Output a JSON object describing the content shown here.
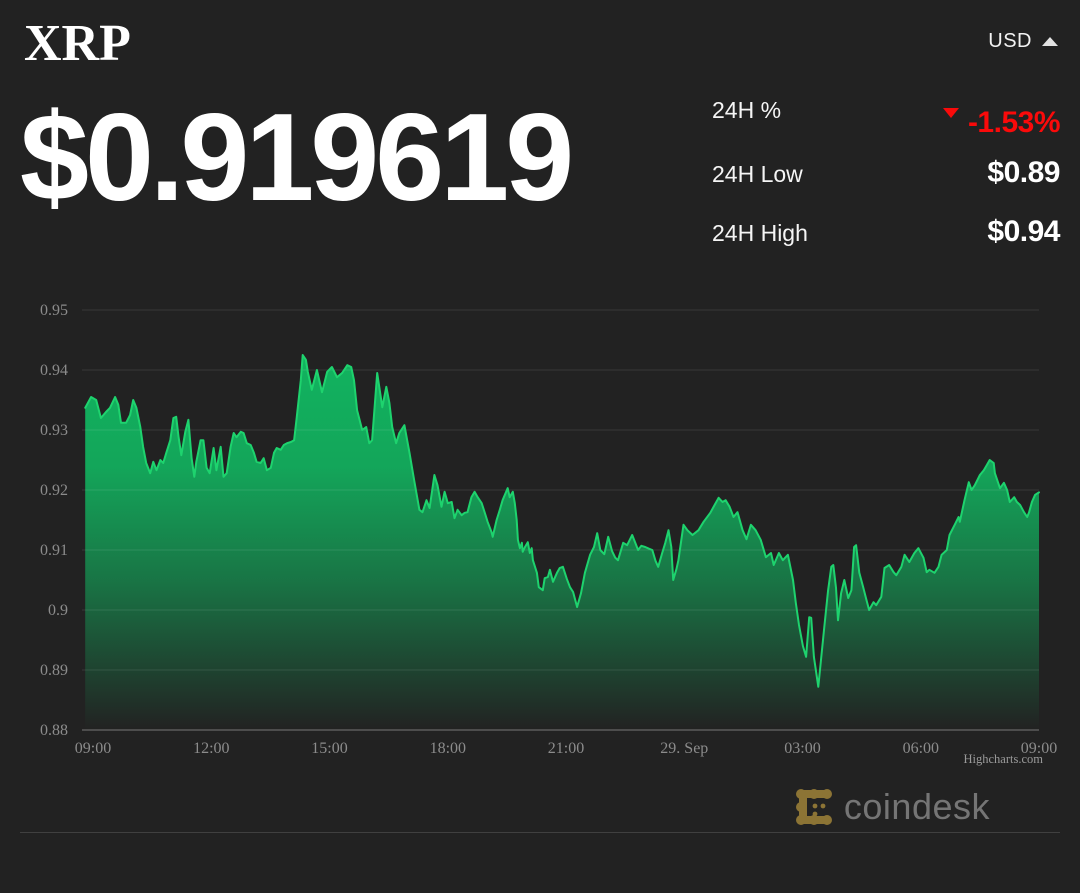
{
  "header": {
    "title": "XRP",
    "currency": "USD"
  },
  "price": {
    "display": "$0.919619"
  },
  "stats": [
    {
      "label": "24H %",
      "value": "-1.53%",
      "direction": "down",
      "color": "#fa0a0a"
    },
    {
      "label": "24H Low",
      "value": "$0.89"
    },
    {
      "label": "24H High",
      "value": "$0.94"
    }
  ],
  "footer": {
    "brand": "coindesk",
    "logo_color": "#8c7435"
  },
  "colors": {
    "background": "#222222",
    "accent_green_line": "#1ed36e",
    "accent_green_fill": "#11b962",
    "negative_red": "#fa0a0a",
    "axis_text": "#8c8c8c"
  },
  "chart_data": {
    "type": "area",
    "title": "",
    "xlabel": "",
    "ylabel": "",
    "x_unit": "hours (09:00 to 09:00 next day, 29. Sep = midnight)",
    "xlim": [
      8.72,
      33.0
    ],
    "ylim": [
      0.88,
      0.95
    ],
    "grid": "horizontal",
    "legend": "none",
    "credit": "Highcharts.com",
    "colors": {
      "line": "#1ed36e",
      "area_base": "#11b962",
      "grid": "rgba(255,255,255,0.10)",
      "axis_line": "#787878"
    },
    "x_ticks": [
      {
        "v": 9,
        "label": "09:00"
      },
      {
        "v": 12,
        "label": "12:00"
      },
      {
        "v": 15,
        "label": "15:00"
      },
      {
        "v": 18,
        "label": "18:00"
      },
      {
        "v": 21,
        "label": "21:00"
      },
      {
        "v": 24,
        "label": "29. Sep"
      },
      {
        "v": 27,
        "label": "03:00"
      },
      {
        "v": 30,
        "label": "06:00"
      },
      {
        "v": 33,
        "label": "09:00"
      }
    ],
    "y_ticks": [
      {
        "v": 0.95,
        "label": "0.95"
      },
      {
        "v": 0.94,
        "label": "0.94"
      },
      {
        "v": 0.93,
        "label": "0.93"
      },
      {
        "v": 0.92,
        "label": "0.92"
      },
      {
        "v": 0.91,
        "label": "0.91"
      },
      {
        "v": 0.9,
        "label": "0.9"
      },
      {
        "v": 0.89,
        "label": "0.89"
      },
      {
        "v": 0.88,
        "label": "0.88"
      }
    ],
    "points": [
      [
        8.8,
        0.9337
      ],
      [
        8.95,
        0.9355
      ],
      [
        9.08,
        0.935
      ],
      [
        9.2,
        0.932
      ],
      [
        9.33,
        0.933
      ],
      [
        9.43,
        0.9337
      ],
      [
        9.56,
        0.9355
      ],
      [
        9.64,
        0.9342
      ],
      [
        9.71,
        0.9312
      ],
      [
        9.84,
        0.9312
      ],
      [
        9.94,
        0.9325
      ],
      [
        10.02,
        0.935
      ],
      [
        10.1,
        0.9337
      ],
      [
        10.2,
        0.9305
      ],
      [
        10.27,
        0.9272
      ],
      [
        10.35,
        0.9245
      ],
      [
        10.45,
        0.9228
      ],
      [
        10.53,
        0.9247
      ],
      [
        10.61,
        0.9233
      ],
      [
        10.71,
        0.925
      ],
      [
        10.78,
        0.9245
      ],
      [
        10.86,
        0.9262
      ],
      [
        10.96,
        0.9283
      ],
      [
        11.04,
        0.932
      ],
      [
        11.11,
        0.9322
      ],
      [
        11.17,
        0.9288
      ],
      [
        11.24,
        0.9258
      ],
      [
        11.34,
        0.9297
      ],
      [
        11.42,
        0.9317
      ],
      [
        11.5,
        0.9253
      ],
      [
        11.57,
        0.9222
      ],
      [
        11.62,
        0.9247
      ],
      [
        11.73,
        0.9283
      ],
      [
        11.8,
        0.9283
      ],
      [
        11.88,
        0.9237
      ],
      [
        11.96,
        0.9228
      ],
      [
        12.06,
        0.927
      ],
      [
        12.13,
        0.9233
      ],
      [
        12.24,
        0.9272
      ],
      [
        12.31,
        0.9222
      ],
      [
        12.39,
        0.9228
      ],
      [
        12.49,
        0.9272
      ],
      [
        12.57,
        0.9295
      ],
      [
        12.64,
        0.9288
      ],
      [
        12.75,
        0.9297
      ],
      [
        12.82,
        0.9295
      ],
      [
        12.9,
        0.9278
      ],
      [
        13.0,
        0.9275
      ],
      [
        13.08,
        0.9262
      ],
      [
        13.15,
        0.9247
      ],
      [
        13.25,
        0.9245
      ],
      [
        13.33,
        0.9253
      ],
      [
        13.41,
        0.9233
      ],
      [
        13.51,
        0.9237
      ],
      [
        13.59,
        0.9262
      ],
      [
        13.66,
        0.927
      ],
      [
        13.76,
        0.9267
      ],
      [
        13.84,
        0.9275
      ],
      [
        13.92,
        0.9278
      ],
      [
        14.02,
        0.928
      ],
      [
        14.1,
        0.9283
      ],
      [
        14.17,
        0.9322
      ],
      [
        14.27,
        0.9383
      ],
      [
        14.32,
        0.9425
      ],
      [
        14.4,
        0.9417
      ],
      [
        14.45,
        0.9397
      ],
      [
        14.55,
        0.9367
      ],
      [
        14.68,
        0.94
      ],
      [
        14.81,
        0.9363
      ],
      [
        14.94,
        0.9397
      ],
      [
        15.06,
        0.9405
      ],
      [
        15.19,
        0.9388
      ],
      [
        15.32,
        0.9395
      ],
      [
        15.45,
        0.9408
      ],
      [
        15.55,
        0.9405
      ],
      [
        15.62,
        0.9383
      ],
      [
        15.7,
        0.9333
      ],
      [
        15.83,
        0.93
      ],
      [
        15.93,
        0.9305
      ],
      [
        16.01,
        0.9278
      ],
      [
        16.08,
        0.9283
      ],
      [
        16.21,
        0.9395
      ],
      [
        16.34,
        0.9338
      ],
      [
        16.44,
        0.9372
      ],
      [
        16.52,
        0.9345
      ],
      [
        16.59,
        0.9305
      ],
      [
        16.69,
        0.9278
      ],
      [
        16.77,
        0.9295
      ],
      [
        16.9,
        0.9308
      ],
      [
        17.03,
        0.9262
      ],
      [
        17.15,
        0.9215
      ],
      [
        17.28,
        0.9167
      ],
      [
        17.36,
        0.9163
      ],
      [
        17.46,
        0.9183
      ],
      [
        17.54,
        0.917
      ],
      [
        17.66,
        0.9225
      ],
      [
        17.74,
        0.9208
      ],
      [
        17.84,
        0.9172
      ],
      [
        17.92,
        0.9197
      ],
      [
        18.0,
        0.9178
      ],
      [
        18.1,
        0.918
      ],
      [
        18.17,
        0.9153
      ],
      [
        18.25,
        0.9167
      ],
      [
        18.35,
        0.9158
      ],
      [
        18.43,
        0.9162
      ],
      [
        18.5,
        0.9163
      ],
      [
        18.6,
        0.9188
      ],
      [
        18.68,
        0.9197
      ],
      [
        18.76,
        0.9188
      ],
      [
        18.86,
        0.9178
      ],
      [
        18.94,
        0.9162
      ],
      [
        19.01,
        0.9147
      ],
      [
        19.11,
        0.913
      ],
      [
        19.14,
        0.9122
      ],
      [
        19.24,
        0.915
      ],
      [
        19.32,
        0.9167
      ],
      [
        19.39,
        0.9183
      ],
      [
        19.5,
        0.92
      ],
      [
        19.52,
        0.9203
      ],
      [
        19.57,
        0.9188
      ],
      [
        19.65,
        0.9197
      ],
      [
        19.7,
        0.9178
      ],
      [
        19.75,
        0.915
      ],
      [
        19.78,
        0.9117
      ],
      [
        19.83,
        0.9103
      ],
      [
        19.88,
        0.9112
      ],
      [
        19.9,
        0.9097
      ],
      [
        19.96,
        0.9105
      ],
      [
        20.03,
        0.9113
      ],
      [
        20.08,
        0.9095
      ],
      [
        20.13,
        0.9103
      ],
      [
        20.16,
        0.9083
      ],
      [
        20.26,
        0.9062
      ],
      [
        20.31,
        0.9038
      ],
      [
        20.41,
        0.9033
      ],
      [
        20.46,
        0.9053
      ],
      [
        20.54,
        0.9055
      ],
      [
        20.59,
        0.9067
      ],
      [
        20.67,
        0.9047
      ],
      [
        20.77,
        0.9062
      ],
      [
        20.84,
        0.907
      ],
      [
        20.92,
        0.9072
      ],
      [
        21.02,
        0.9052
      ],
      [
        21.1,
        0.9038
      ],
      [
        21.18,
        0.903
      ],
      [
        21.28,
        0.9005
      ],
      [
        21.38,
        0.9028
      ],
      [
        21.48,
        0.9062
      ],
      [
        21.61,
        0.9092
      ],
      [
        21.71,
        0.9105
      ],
      [
        21.79,
        0.9128
      ],
      [
        21.87,
        0.91
      ],
      [
        21.97,
        0.9093
      ],
      [
        22.07,
        0.9122
      ],
      [
        22.17,
        0.9098
      ],
      [
        22.25,
        0.9087
      ],
      [
        22.32,
        0.9083
      ],
      [
        22.45,
        0.9112
      ],
      [
        22.55,
        0.9108
      ],
      [
        22.68,
        0.9125
      ],
      [
        22.83,
        0.91
      ],
      [
        22.91,
        0.9107
      ],
      [
        23.01,
        0.9105
      ],
      [
        23.11,
        0.9102
      ],
      [
        23.19,
        0.91
      ],
      [
        23.27,
        0.9082
      ],
      [
        23.34,
        0.9072
      ],
      [
        23.44,
        0.9095
      ],
      [
        23.52,
        0.9112
      ],
      [
        23.6,
        0.9133
      ],
      [
        23.67,
        0.9105
      ],
      [
        23.72,
        0.905
      ],
      [
        23.8,
        0.9068
      ],
      [
        23.85,
        0.9083
      ],
      [
        23.98,
        0.9142
      ],
      [
        24.08,
        0.9133
      ],
      [
        24.21,
        0.9125
      ],
      [
        24.36,
        0.9133
      ],
      [
        24.49,
        0.9147
      ],
      [
        24.66,
        0.9162
      ],
      [
        24.77,
        0.9175
      ],
      [
        24.87,
        0.9187
      ],
      [
        24.97,
        0.918
      ],
      [
        25.05,
        0.9183
      ],
      [
        25.15,
        0.9172
      ],
      [
        25.25,
        0.9155
      ],
      [
        25.35,
        0.9163
      ],
      [
        25.48,
        0.9133
      ],
      [
        25.58,
        0.9118
      ],
      [
        25.69,
        0.9142
      ],
      [
        25.81,
        0.9133
      ],
      [
        25.94,
        0.9117
      ],
      [
        26.07,
        0.9088
      ],
      [
        26.2,
        0.9095
      ],
      [
        26.27,
        0.9075
      ],
      [
        26.4,
        0.9095
      ],
      [
        26.5,
        0.9083
      ],
      [
        26.63,
        0.9092
      ],
      [
        26.76,
        0.905
      ],
      [
        26.83,
        0.9012
      ],
      [
        26.91,
        0.8975
      ],
      [
        27.01,
        0.894
      ],
      [
        27.09,
        0.8922
      ],
      [
        27.17,
        0.8988
      ],
      [
        27.22,
        0.8987
      ],
      [
        27.29,
        0.8922
      ],
      [
        27.4,
        0.8872
      ],
      [
        27.47,
        0.8917
      ],
      [
        27.55,
        0.897
      ],
      [
        27.65,
        0.9033
      ],
      [
        27.73,
        0.9072
      ],
      [
        27.78,
        0.9075
      ],
      [
        27.85,
        0.9037
      ],
      [
        27.9,
        0.8983
      ],
      [
        27.98,
        0.9028
      ],
      [
        28.06,
        0.905
      ],
      [
        28.16,
        0.902
      ],
      [
        28.24,
        0.9033
      ],
      [
        28.31,
        0.9105
      ],
      [
        28.36,
        0.9108
      ],
      [
        28.44,
        0.9062
      ],
      [
        28.54,
        0.9038
      ],
      [
        28.62,
        0.9017
      ],
      [
        28.69,
        0.9
      ],
      [
        28.8,
        0.9013
      ],
      [
        28.87,
        0.9008
      ],
      [
        29.0,
        0.9022
      ],
      [
        29.08,
        0.907
      ],
      [
        29.2,
        0.9075
      ],
      [
        29.31,
        0.9063
      ],
      [
        29.38,
        0.9058
      ],
      [
        29.51,
        0.9072
      ],
      [
        29.59,
        0.9092
      ],
      [
        29.71,
        0.908
      ],
      [
        29.84,
        0.9095
      ],
      [
        29.94,
        0.9103
      ],
      [
        30.07,
        0.9087
      ],
      [
        30.15,
        0.9063
      ],
      [
        30.22,
        0.9067
      ],
      [
        30.35,
        0.9062
      ],
      [
        30.45,
        0.9072
      ],
      [
        30.53,
        0.9092
      ],
      [
        30.66,
        0.91
      ],
      [
        30.73,
        0.9125
      ],
      [
        30.86,
        0.9142
      ],
      [
        30.96,
        0.9155
      ],
      [
        30.99,
        0.9147
      ],
      [
        31.11,
        0.9183
      ],
      [
        31.22,
        0.9213
      ],
      [
        31.29,
        0.92
      ],
      [
        31.37,
        0.9208
      ],
      [
        31.5,
        0.9225
      ],
      [
        31.6,
        0.9233
      ],
      [
        31.68,
        0.9242
      ],
      [
        31.75,
        0.925
      ],
      [
        31.85,
        0.9245
      ],
      [
        31.88,
        0.9228
      ],
      [
        32.01,
        0.9203
      ],
      [
        32.11,
        0.9212
      ],
      [
        32.19,
        0.92
      ],
      [
        32.26,
        0.918
      ],
      [
        32.37,
        0.9188
      ],
      [
        32.44,
        0.918
      ],
      [
        32.52,
        0.9175
      ],
      [
        32.62,
        0.9163
      ],
      [
        32.7,
        0.9155
      ],
      [
        32.75,
        0.9163
      ],
      [
        32.82,
        0.918
      ],
      [
        32.9,
        0.9192
      ],
      [
        33.0,
        0.9196
      ]
    ]
  }
}
